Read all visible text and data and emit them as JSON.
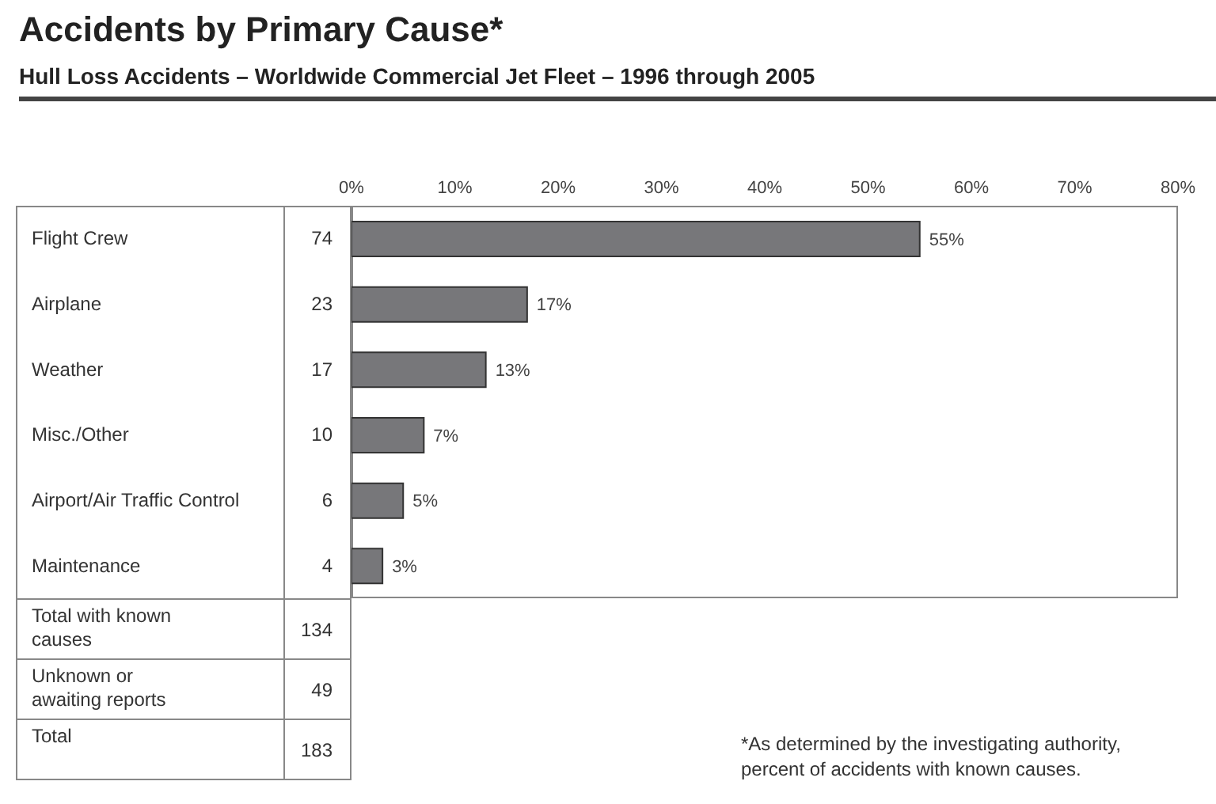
{
  "chart_data": {
    "type": "bar",
    "orientation": "horizontal",
    "title": "Accidents by Primary Cause*",
    "subtitle": "Hull Loss Accidents – Worldwide Commercial Jet Fleet – 1996 through 2005",
    "categories": [
      "Flight Crew",
      "Airplane",
      "Weather",
      "Misc./Other",
      "Airport/Air Traffic Control",
      "Maintenance"
    ],
    "values": [
      55,
      17,
      13,
      7,
      5,
      3
    ],
    "value_labels": [
      "55%",
      "17%",
      "13%",
      "7%",
      "5%",
      "3%"
    ],
    "color": "#77777a",
    "xlim": [
      0,
      80
    ],
    "xticks": [
      {
        "value": 0,
        "label": "0%"
      },
      {
        "value": 10,
        "label": "10%"
      },
      {
        "value": 20,
        "label": "20%"
      },
      {
        "value": 30,
        "label": "30%"
      },
      {
        "value": 40,
        "label": "40%"
      },
      {
        "value": 50,
        "label": "50%"
      },
      {
        "value": 60,
        "label": "60%"
      },
      {
        "value": 70,
        "label": "70%"
      },
      {
        "value": 80,
        "label": "80%"
      }
    ],
    "annotations": [
      "74",
      "23",
      "17",
      "10",
      "6",
      "4",
      "Total with known causes",
      "134",
      "Unknown or awaiting reports",
      "49",
      "Total",
      "183",
      "*As determined by the investigating authority, percent of accidents with known causes."
    ]
  }
}
